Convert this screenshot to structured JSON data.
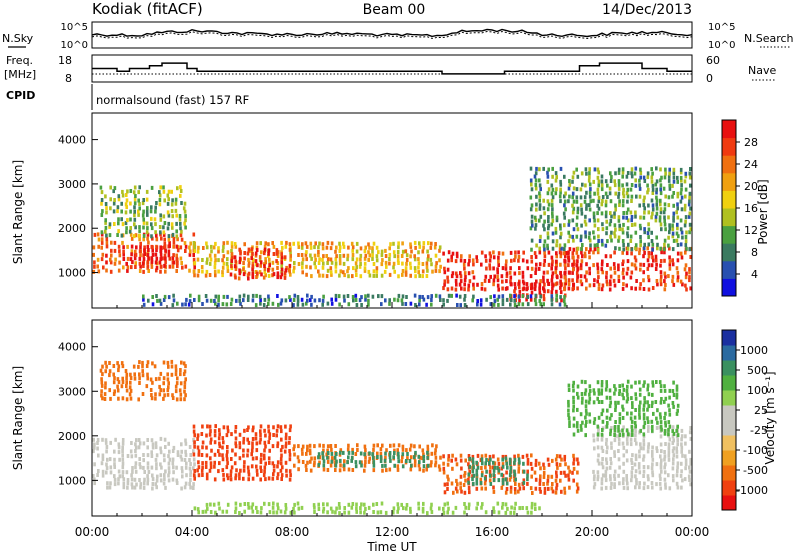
{
  "header": {
    "station": "Kodiak (fitACF)",
    "beam": "Beam 00",
    "date": "14/Dec/2013"
  },
  "summary_panels": {
    "nsky_label": "N.Sky",
    "nsky_ticks": [
      "10^5",
      "10^0"
    ],
    "nsearch_label": "N.Search",
    "nsearch_ticks": [
      "10^5",
      "10^0"
    ],
    "freq_label": "Freq.",
    "freq_unit": "[MHz]",
    "freq_ticks": [
      "18",
      "8"
    ],
    "nave_label": "Nave",
    "nave_ticks": [
      "60",
      "0"
    ],
    "cpid_label": "CPID",
    "cpid_text": "normalsound (fast) 157 RF"
  },
  "colorbars": {
    "power": {
      "label": "Power [dB]",
      "ticks": [
        "28",
        "24",
        "20",
        "16",
        "12",
        "8",
        "4"
      ],
      "colors": [
        "#1010e0",
        "#2850b0",
        "#3a7a60",
        "#4aa040",
        "#b0c020",
        "#f0d010",
        "#f0a010",
        "#f07010",
        "#f03a10",
        "#e81010"
      ]
    },
    "velocity": {
      "label": "Velocity [m s⁻¹]",
      "ticks": [
        "1000",
        "500",
        "100",
        "25",
        "-25",
        "-100",
        "-500",
        "-1000"
      ],
      "colors": [
        "#1a2fa0",
        "#2a6aa0",
        "#3a9060",
        "#50b040",
        "#90d050",
        "#c8c8c0",
        "#c8c8c0",
        "#f0c060",
        "#f0a020",
        "#f07010",
        "#f04010",
        "#e81010"
      ]
    }
  },
  "chart_data": [
    {
      "type": "line",
      "title": "N.Sky / N.Search",
      "x": [
        "00:00",
        "02:00",
        "04:00",
        "06:00",
        "08:00",
        "10:00",
        "12:00",
        "14:00",
        "16:00",
        "18:00",
        "20:00",
        "22:00",
        "00:00"
      ],
      "series": [
        {
          "name": "N.Sky",
          "values": [
            400,
            300,
            2000,
            600,
            400,
            600,
            300,
            250,
            3000,
            400,
            250,
            1000,
            400
          ]
        }
      ],
      "ylim": [
        1,
        100000
      ],
      "yscale": "log"
    },
    {
      "type": "line",
      "title": "Freq. / Nave",
      "x_hours": [
        0,
        1.0,
        1.5,
        2.3,
        2.8,
        3.2,
        3.8,
        4.2,
        5.5,
        6.5,
        8.0,
        9.5,
        11.0,
        12.5,
        14.0,
        16.5,
        17.5,
        19.5,
        20.3,
        21.0,
        22.0,
        23.0,
        24.0
      ],
      "series": [
        {
          "name": "Freq.",
          "values": [
            13,
            12,
            13,
            14,
            15,
            15,
            13,
            12,
            12,
            12,
            12,
            12,
            12,
            12,
            11,
            12,
            12,
            14,
            15,
            15,
            13,
            12,
            12
          ]
        }
      ],
      "ylim": [
        8,
        18
      ]
    },
    {
      "type": "heatmap",
      "title": "Power [dB]",
      "xlabel": "",
      "ylabel": "Slant Range [km]",
      "xlim_hours": [
        0,
        24
      ],
      "ylim": [
        200,
        4600
      ],
      "yticks": [
        1000,
        2000,
        3000,
        4000
      ],
      "colorbar_range": [
        0,
        30
      ],
      "patches": [
        {
          "t_start": 0.0,
          "t_end": 4.2,
          "r_low": 1000,
          "r_high": 1900,
          "value": 24
        },
        {
          "t_start": 1.5,
          "t_end": 3.5,
          "r_low": 1100,
          "r_high": 1600,
          "value": 29
        },
        {
          "t_start": 0.3,
          "t_end": 3.8,
          "r_low": 1800,
          "r_high": 3000,
          "value": 12
        },
        {
          "t_start": 4.0,
          "t_end": 14.0,
          "r_low": 900,
          "r_high": 1700,
          "value": 18
        },
        {
          "t_start": 5.5,
          "t_end": 8.0,
          "r_low": 850,
          "r_high": 1600,
          "value": 27
        },
        {
          "t_start": 14.0,
          "t_end": 19.5,
          "r_low": 600,
          "r_high": 1500,
          "value": 28
        },
        {
          "t_start": 16.5,
          "t_end": 19.0,
          "r_low": 350,
          "r_high": 800,
          "value": 29
        },
        {
          "t_start": 18.5,
          "t_end": 24.0,
          "r_low": 600,
          "r_high": 1600,
          "value": 26
        },
        {
          "t_start": 17.5,
          "t_end": 24.0,
          "r_low": 1500,
          "r_high": 3400,
          "value": 10
        },
        {
          "t_start": 2.0,
          "t_end": 19.0,
          "r_low": 250,
          "r_high": 500,
          "value": 7
        }
      ]
    },
    {
      "type": "heatmap",
      "title": "Velocity [m s⁻¹]",
      "xlabel": "Time UT",
      "ylabel": "Slant Range [km]",
      "xlim_hours": [
        0,
        24
      ],
      "xticks": [
        "00:00",
        "04:00",
        "08:00",
        "12:00",
        "16:00",
        "20:00",
        "00:00"
      ],
      "ylim": [
        200,
        4600
      ],
      "yticks": [
        1000,
        2000,
        3000,
        4000
      ],
      "patches": [
        {
          "t_start": 0.0,
          "t_end": 4.2,
          "r_low": 800,
          "r_high": 2000,
          "value": 0
        },
        {
          "t_start": 0.3,
          "t_end": 3.8,
          "r_low": 2800,
          "r_high": 3700,
          "value": -150
        },
        {
          "t_start": 4.0,
          "t_end": 8.0,
          "r_low": 1000,
          "r_high": 2300,
          "value": -300
        },
        {
          "t_start": 8.0,
          "t_end": 14.0,
          "r_low": 1200,
          "r_high": 1800,
          "value": -200
        },
        {
          "t_start": 9.0,
          "t_end": 13.5,
          "r_low": 1300,
          "r_high": 1700,
          "value": 300
        },
        {
          "t_start": 14.0,
          "t_end": 19.5,
          "r_low": 700,
          "r_high": 1600,
          "value": -250
        },
        {
          "t_start": 15.0,
          "t_end": 17.5,
          "r_low": 900,
          "r_high": 1500,
          "value": 400
        },
        {
          "t_start": 20.0,
          "t_end": 24.0,
          "r_low": 800,
          "r_high": 2200,
          "value": 0
        },
        {
          "t_start": 19.0,
          "t_end": 23.5,
          "r_low": 2000,
          "r_high": 3300,
          "value": 150
        },
        {
          "t_start": 4.0,
          "t_end": 18.0,
          "r_low": 250,
          "r_high": 550,
          "value": 60
        }
      ]
    }
  ]
}
